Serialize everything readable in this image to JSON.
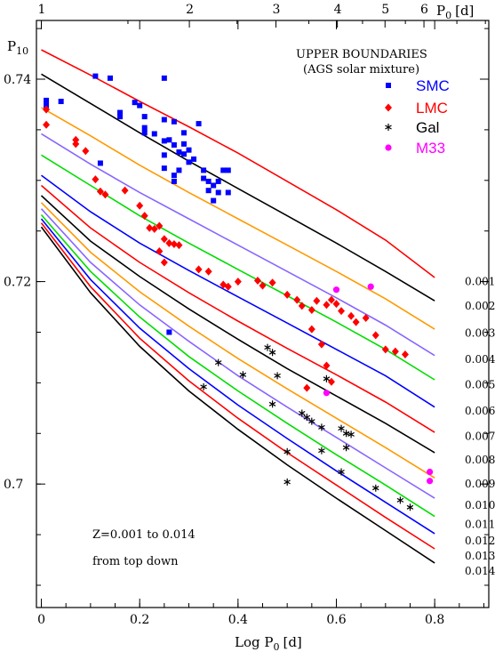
{
  "chart_data": {
    "type": "line",
    "title": "UPPER BOUNDARIES",
    "subtitle": "(AGS solar mixture)",
    "xlabel": "Log P",
    "xlabel_sub": "0",
    "xlabel_unit": "[d]",
    "ylabel": "P",
    "ylabel_sub": "10",
    "top_axis_label": "P",
    "top_axis_sub": "0",
    "top_axis_unit": "[d]",
    "xlim": [
      -0.01,
      0.91
    ],
    "ylim": [
      0.6878,
      0.7458
    ],
    "x_ticks": [
      "0",
      "0.2",
      "0.4",
      "0.6",
      "0.8"
    ],
    "x_tick_values": [
      0,
      0.2,
      0.4,
      0.6,
      0.8
    ],
    "y_ticks": [
      "0.7",
      "0.72",
      "0.74"
    ],
    "y_tick_values": [
      0.7,
      0.72,
      0.74
    ],
    "top_ticks": [
      "1",
      "2",
      "3",
      "4",
      "5",
      "6"
    ],
    "top_tick_values": [
      1,
      2,
      3,
      4,
      5,
      6
    ],
    "note_line1": "Z=0.001 to 0.014",
    "note_line2": "from top down",
    "x": [
      0.0,
      0.1,
      0.2,
      0.3,
      0.4,
      0.5,
      0.6,
      0.7,
      0.8
    ],
    "series": [
      {
        "name": "0.001",
        "color": "#ff0000",
        "values": [
          0.7429,
          0.7404,
          0.7378,
          0.7353,
          0.7327,
          0.7299,
          0.7271,
          0.7241,
          0.7204
        ]
      },
      {
        "name": "0.002",
        "color": "#000000",
        "values": [
          0.7405,
          0.7376,
          0.7347,
          0.7319,
          0.7292,
          0.7265,
          0.7238,
          0.721,
          0.7181
        ]
      },
      {
        "name": "0.003",
        "color": "#ff9900",
        "values": [
          0.7372,
          0.7344,
          0.7315,
          0.7288,
          0.7262,
          0.7236,
          0.721,
          0.7183,
          0.7153
        ]
      },
      {
        "name": "0.004",
        "color": "#8866ff",
        "values": [
          0.7346,
          0.7316,
          0.7288,
          0.7262,
          0.7236,
          0.721,
          0.7184,
          0.7157,
          0.7127
        ]
      },
      {
        "name": "0.005",
        "color": "#00dd00",
        "values": [
          0.7325,
          0.7295,
          0.7265,
          0.7238,
          0.7212,
          0.7186,
          0.716,
          0.7133,
          0.7103
        ]
      },
      {
        "name": "0.006",
        "color": "#0000ff",
        "values": [
          0.7305,
          0.7269,
          0.7238,
          0.7211,
          0.7185,
          0.7159,
          0.7133,
          0.7107,
          0.7076
        ]
      },
      {
        "name": "0.007",
        "color": "#ff0000",
        "values": [
          0.7295,
          0.7253,
          0.7219,
          0.7189,
          0.7161,
          0.7134,
          0.7108,
          0.7081,
          0.7051
        ]
      },
      {
        "name": "0.008",
        "color": "#000000",
        "values": [
          0.7285,
          0.724,
          0.7205,
          0.7173,
          0.7143,
          0.7114,
          0.7087,
          0.706,
          0.7031
        ]
      },
      {
        "name": "0.009",
        "color": "#ff9900",
        "values": [
          0.7278,
          0.7229,
          0.719,
          0.7156,
          0.7124,
          0.7094,
          0.7065,
          0.7036,
          0.7006
        ]
      },
      {
        "name": "0.010",
        "color": "#8866ff",
        "values": [
          0.7272,
          0.7219,
          0.7177,
          0.7141,
          0.7107,
          0.7076,
          0.7046,
          0.7016,
          0.6986
        ]
      },
      {
        "name": "0.011",
        "color": "#00dd00",
        "values": [
          0.7266,
          0.721,
          0.7165,
          0.7126,
          0.7092,
          0.706,
          0.7029,
          0.6999,
          0.6968
        ]
      },
      {
        "name": "0.012",
        "color": "#0000ff",
        "values": [
          0.7262,
          0.7202,
          0.7154,
          0.7114,
          0.7078,
          0.7045,
          0.7013,
          0.6982,
          0.6951
        ]
      },
      {
        "name": "0.013",
        "color": "#ff0000",
        "values": [
          0.7258,
          0.7195,
          0.7144,
          0.7102,
          0.7065,
          0.7031,
          0.6999,
          0.6967,
          0.6936
        ]
      },
      {
        "name": "0.014",
        "color": "#000000",
        "values": [
          0.7254,
          0.7189,
          0.7136,
          0.7092,
          0.7054,
          0.7019,
          0.6986,
          0.6954,
          0.6922
        ]
      }
    ],
    "scatter_series": [
      {
        "name": "SMC",
        "color": "#0000ff",
        "marker": "square",
        "points": [
          [
            0.01,
            0.7379
          ],
          [
            0.01,
            0.7374
          ],
          [
            0.04,
            0.7378
          ],
          [
            0.11,
            0.7403
          ],
          [
            0.14,
            0.7401
          ],
          [
            0.16,
            0.7367
          ],
          [
            0.16,
            0.7363
          ],
          [
            0.19,
            0.7377
          ],
          [
            0.2,
            0.7374
          ],
          [
            0.21,
            0.7363
          ],
          [
            0.21,
            0.7352
          ],
          [
            0.21,
            0.7347
          ],
          [
            0.23,
            0.7346
          ],
          [
            0.25,
            0.7401
          ],
          [
            0.25,
            0.736
          ],
          [
            0.25,
            0.7339
          ],
          [
            0.25,
            0.7325
          ],
          [
            0.25,
            0.7312
          ],
          [
            0.26,
            0.734
          ],
          [
            0.27,
            0.7358
          ],
          [
            0.27,
            0.7335
          ],
          [
            0.27,
            0.7305
          ],
          [
            0.27,
            0.7299
          ],
          [
            0.28,
            0.7328
          ],
          [
            0.28,
            0.731
          ],
          [
            0.29,
            0.7347
          ],
          [
            0.29,
            0.7336
          ],
          [
            0.29,
            0.7326
          ],
          [
            0.3,
            0.7318
          ],
          [
            0.3,
            0.733
          ],
          [
            0.31,
            0.7321
          ],
          [
            0.32,
            0.7356
          ],
          [
            0.33,
            0.731
          ],
          [
            0.33,
            0.7302
          ],
          [
            0.34,
            0.7299
          ],
          [
            0.34,
            0.729
          ],
          [
            0.35,
            0.7295
          ],
          [
            0.36,
            0.7299
          ],
          [
            0.36,
            0.7288
          ],
          [
            0.37,
            0.731
          ],
          [
            0.38,
            0.731
          ],
          [
            0.38,
            0.7288
          ],
          [
            0.35,
            0.728
          ],
          [
            0.12,
            0.7317
          ],
          [
            0.26,
            0.715
          ]
        ]
      },
      {
        "name": "LMC",
        "color": "#ff0000",
        "marker": "diamond",
        "points": [
          [
            0.01,
            0.737
          ],
          [
            0.01,
            0.7355
          ],
          [
            0.07,
            0.734
          ],
          [
            0.07,
            0.7336
          ],
          [
            0.09,
            0.7329
          ],
          [
            0.11,
            0.7301
          ],
          [
            0.12,
            0.7289
          ],
          [
            0.13,
            0.7286
          ],
          [
            0.17,
            0.729
          ],
          [
            0.2,
            0.7275
          ],
          [
            0.21,
            0.7265
          ],
          [
            0.22,
            0.7253
          ],
          [
            0.23,
            0.7252
          ],
          [
            0.24,
            0.7255
          ],
          [
            0.25,
            0.7242
          ],
          [
            0.26,
            0.7238
          ],
          [
            0.27,
            0.7237
          ],
          [
            0.28,
            0.7236
          ],
          [
            0.24,
            0.723
          ],
          [
            0.25,
            0.7219
          ],
          [
            0.32,
            0.7212
          ],
          [
            0.34,
            0.721
          ],
          [
            0.37,
            0.7197
          ],
          [
            0.38,
            0.7195
          ],
          [
            0.4,
            0.72
          ],
          [
            0.44,
            0.7201
          ],
          [
            0.45,
            0.7196
          ],
          [
            0.47,
            0.7199
          ],
          [
            0.5,
            0.7187
          ],
          [
            0.52,
            0.7182
          ],
          [
            0.53,
            0.7176
          ],
          [
            0.55,
            0.7172
          ],
          [
            0.56,
            0.7181
          ],
          [
            0.58,
            0.7177
          ],
          [
            0.59,
            0.7182
          ],
          [
            0.6,
            0.7178
          ],
          [
            0.61,
            0.7171
          ],
          [
            0.63,
            0.7166
          ],
          [
            0.64,
            0.716
          ],
          [
            0.66,
            0.7164
          ],
          [
            0.68,
            0.7147
          ],
          [
            0.7,
            0.7133
          ],
          [
            0.72,
            0.7131
          ],
          [
            0.74,
            0.7128
          ],
          [
            0.55,
            0.7153
          ],
          [
            0.57,
            0.7138
          ],
          [
            0.58,
            0.7117
          ],
          [
            0.59,
            0.7101
          ],
          [
            0.54,
            0.7095
          ]
        ]
      },
      {
        "name": "Gal",
        "color": "#000000",
        "marker": "star",
        "points": [
          [
            0.33,
            0.7096
          ],
          [
            0.36,
            0.712
          ],
          [
            0.41,
            0.7108
          ],
          [
            0.46,
            0.7135
          ],
          [
            0.47,
            0.713
          ],
          [
            0.48,
            0.7107
          ],
          [
            0.47,
            0.7079
          ],
          [
            0.53,
            0.707
          ],
          [
            0.54,
            0.7066
          ],
          [
            0.55,
            0.7062
          ],
          [
            0.57,
            0.7056
          ],
          [
            0.57,
            0.7033
          ],
          [
            0.61,
            0.7055
          ],
          [
            0.62,
            0.705
          ],
          [
            0.63,
            0.7049
          ],
          [
            0.61,
            0.7012
          ],
          [
            0.62,
            0.7036
          ],
          [
            0.68,
            0.6996
          ],
          [
            0.73,
            0.6984
          ],
          [
            0.75,
            0.6977
          ],
          [
            0.5,
            0.7002
          ],
          [
            0.5,
            0.7032
          ],
          [
            0.58,
            0.7104
          ]
        ]
      },
      {
        "name": "M33",
        "color": "#ff00ff",
        "marker": "circle",
        "points": [
          [
            0.6,
            0.7192
          ],
          [
            0.67,
            0.7195
          ],
          [
            0.58,
            0.709
          ],
          [
            0.79,
            0.7012
          ],
          [
            0.79,
            0.7003
          ]
        ]
      }
    ]
  }
}
